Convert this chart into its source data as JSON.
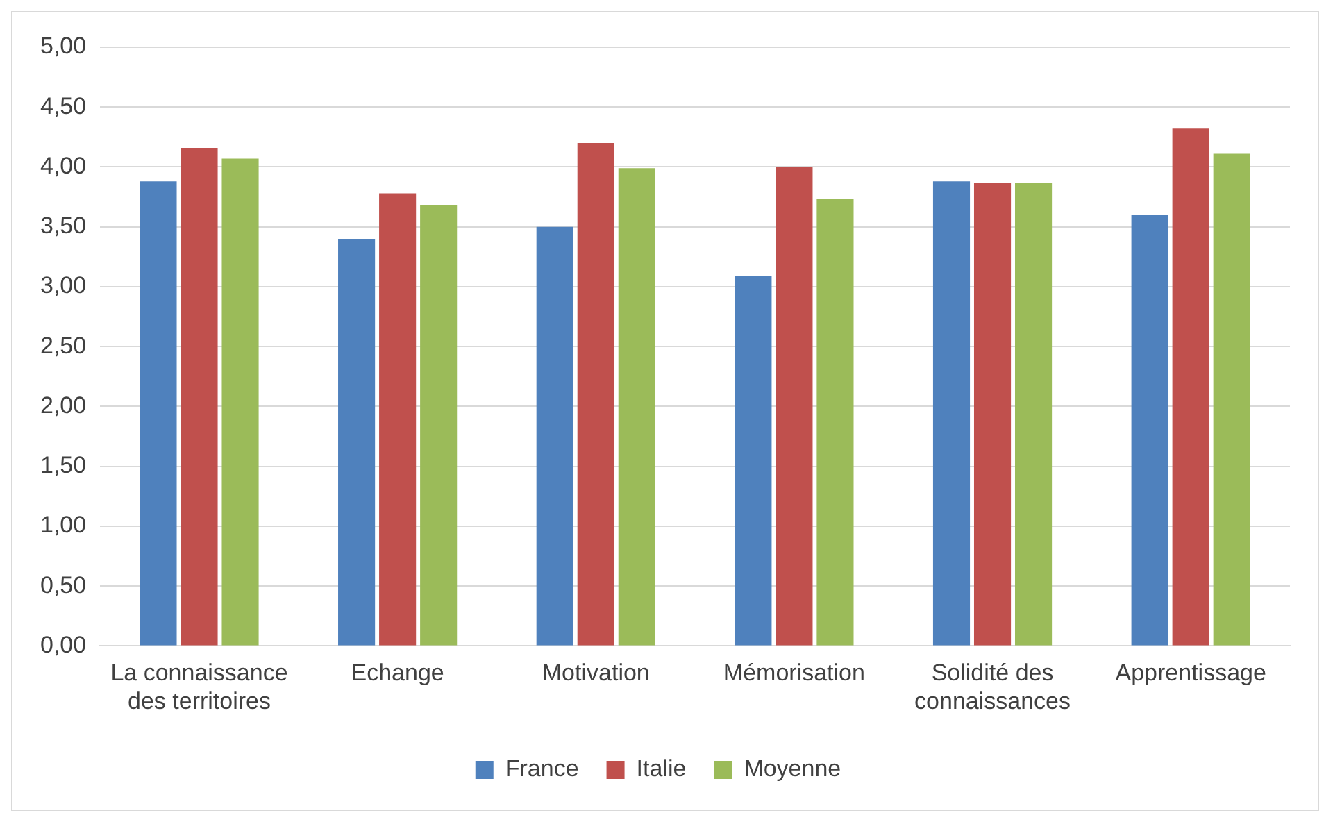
{
  "chart_data": {
    "type": "bar",
    "categories": [
      "La connaissance des territoires",
      "Echange",
      "Motivation",
      "Mémorisation",
      "Solidité des connaissances",
      "Apprentissage"
    ],
    "series": [
      {
        "name": "France",
        "color": "#4f81bd",
        "values": [
          3.88,
          3.4,
          3.5,
          3.09,
          3.88,
          3.6
        ]
      },
      {
        "name": "Italie",
        "color": "#c0504d",
        "values": [
          4.16,
          3.78,
          4.2,
          4.0,
          3.87,
          4.32
        ]
      },
      {
        "name": "Moyenne",
        "color": "#9bbb59",
        "values": [
          4.07,
          3.68,
          3.99,
          3.73,
          3.87,
          4.11
        ]
      }
    ],
    "ylim": [
      0,
      5
    ],
    "yticks": [
      {
        "value": 0,
        "label": "0,00"
      },
      {
        "value": 0.5,
        "label": "0,50"
      },
      {
        "value": 1,
        "label": "1,00"
      },
      {
        "value": 1.5,
        "label": "1,50"
      },
      {
        "value": 2,
        "label": "2,00"
      },
      {
        "value": 2.5,
        "label": "2,50"
      },
      {
        "value": 3,
        "label": "3,00"
      },
      {
        "value": 3.5,
        "label": "3,50"
      },
      {
        "value": 4,
        "label": "4,00"
      },
      {
        "value": 4.5,
        "label": "4,50"
      },
      {
        "value": 5,
        "label": "5,00"
      }
    ],
    "grid": "y",
    "legend": "bottom"
  }
}
